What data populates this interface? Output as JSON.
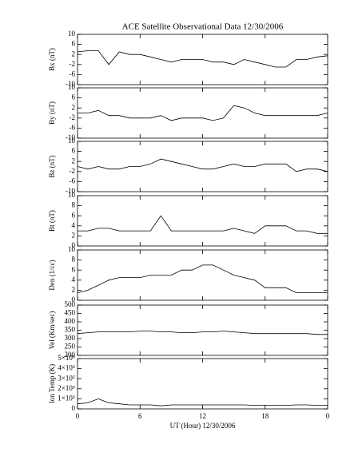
{
  "chart_data": [
    {
      "type": "line",
      "title": "ACE Satellite Observational Data   12/30/2006",
      "ylabel": "Bx (nT)",
      "x": [
        0,
        1,
        2,
        3,
        4,
        5,
        6,
        7,
        8,
        9,
        10,
        11,
        12,
        13,
        14,
        15,
        16,
        17,
        18,
        19,
        20,
        21,
        22,
        23,
        24
      ],
      "series": [
        {
          "name": "Bx",
          "color": "#000000",
          "values": [
            3,
            3.5,
            3.5,
            -2,
            3,
            2,
            2,
            1,
            0,
            -1,
            0,
            0,
            0,
            -1,
            -1,
            -2,
            0,
            -1,
            -2,
            -3,
            -3,
            0,
            0,
            1,
            1.5
          ]
        }
      ],
      "xlim": [
        0,
        24
      ],
      "xticks": [
        0,
        6,
        12,
        18,
        {
          "value": 24,
          "label": "0"
        }
      ],
      "ylim": [
        -10,
        10
      ],
      "yticks": [
        -10,
        -6,
        -2,
        2,
        6,
        10
      ]
    },
    {
      "type": "line",
      "ylabel": "By (nT)",
      "x": [
        0,
        1,
        2,
        3,
        4,
        5,
        6,
        7,
        8,
        9,
        10,
        11,
        12,
        13,
        14,
        15,
        16,
        17,
        18,
        19,
        20,
        21,
        22,
        23,
        24
      ],
      "series": [
        {
          "name": "By",
          "color": "#000000",
          "values": [
            0,
            0,
            1,
            -1,
            -1,
            -2,
            -2,
            -2,
            -1,
            -3,
            -2,
            -2,
            -2,
            -3,
            -2,
            3,
            2,
            0,
            -1,
            -1,
            -1,
            -1,
            -1,
            -1,
            0
          ]
        }
      ],
      "xlim": [
        0,
        24
      ],
      "xticks": [
        0,
        6,
        12,
        18,
        {
          "value": 24,
          "label": "0"
        }
      ],
      "ylim": [
        -10,
        10
      ],
      "yticks": [
        -10,
        -6,
        -2,
        2,
        6,
        10
      ]
    },
    {
      "type": "line",
      "ylabel": "Bz (nT)",
      "x": [
        0,
        1,
        2,
        3,
        4,
        5,
        6,
        7,
        8,
        9,
        10,
        11,
        12,
        13,
        14,
        15,
        16,
        17,
        18,
        19,
        20,
        21,
        22,
        23,
        24
      ],
      "series": [
        {
          "name": "Bz",
          "color": "#000000",
          "values": [
            0,
            -1,
            0,
            -1,
            -1,
            0,
            0,
            1,
            3,
            2,
            1,
            0,
            -1,
            -1,
            0,
            1,
            0,
            0,
            1,
            1,
            1,
            -2,
            -1,
            -1,
            -2
          ]
        }
      ],
      "xlim": [
        0,
        24
      ],
      "xticks": [
        0,
        6,
        12,
        18,
        {
          "value": 24,
          "label": "0"
        }
      ],
      "ylim": [
        -10,
        10
      ],
      "yticks": [
        -10,
        -6,
        -2,
        2,
        6,
        10
      ]
    },
    {
      "type": "line",
      "ylabel": "Bt (nT)",
      "x": [
        0,
        1,
        2,
        3,
        4,
        5,
        6,
        7,
        8,
        9,
        10,
        11,
        12,
        13,
        14,
        15,
        16,
        17,
        18,
        19,
        20,
        21,
        22,
        23,
        24
      ],
      "series": [
        {
          "name": "Bt",
          "color": "#000000",
          "values": [
            3,
            3,
            3.5,
            3.5,
            3,
            3,
            3,
            3,
            6,
            3,
            3,
            3,
            3,
            3,
            3,
            3.5,
            3,
            2.5,
            4,
            4,
            4,
            3,
            3,
            2.5,
            2.5
          ]
        }
      ],
      "xlim": [
        0,
        24
      ],
      "xticks": [
        0,
        6,
        12,
        18,
        {
          "value": 24,
          "label": "0"
        }
      ],
      "ylim": [
        0,
        10
      ],
      "yticks": [
        0,
        2,
        4,
        6,
        8,
        10
      ]
    },
    {
      "type": "line",
      "ylabel": "Den (1/cc)",
      "x": [
        0,
        1,
        2,
        3,
        4,
        5,
        6,
        7,
        8,
        9,
        10,
        11,
        12,
        13,
        14,
        15,
        16,
        17,
        18,
        19,
        20,
        21,
        22,
        23,
        24
      ],
      "series": [
        {
          "name": "Den",
          "color": "#000000",
          "values": [
            1.5,
            2,
            3,
            4,
            4.5,
            4.5,
            4.5,
            5,
            5,
            5,
            6,
            6,
            7,
            7,
            6,
            5,
            4.5,
            4,
            2.5,
            2.5,
            2.5,
            1.5,
            1.5,
            1.5,
            1.5
          ]
        }
      ],
      "xlim": [
        0,
        24
      ],
      "xticks": [
        0,
        6,
        12,
        18,
        {
          "value": 24,
          "label": "0"
        }
      ],
      "ylim": [
        0,
        10
      ],
      "yticks": [
        0,
        2,
        4,
        6,
        8,
        10
      ]
    },
    {
      "type": "line",
      "ylabel": "Vel (Km/sec)",
      "x": [
        0,
        1,
        2,
        3,
        4,
        5,
        6,
        7,
        8,
        9,
        10,
        11,
        12,
        13,
        14,
        15,
        16,
        17,
        18,
        19,
        20,
        21,
        22,
        23,
        24
      ],
      "series": [
        {
          "name": "Vel",
          "color": "#000000",
          "values": [
            330,
            335,
            340,
            340,
            340,
            340,
            345,
            345,
            340,
            340,
            335,
            335,
            340,
            340,
            345,
            340,
            335,
            330,
            330,
            330,
            330,
            330,
            330,
            325,
            325
          ]
        }
      ],
      "xlim": [
        0,
        24
      ],
      "xticks": [
        0,
        6,
        12,
        18,
        {
          "value": 24,
          "label": "0"
        }
      ],
      "ylim": [
        200,
        500
      ],
      "yticks": [
        200,
        250,
        300,
        350,
        400,
        450,
        500
      ]
    },
    {
      "type": "line",
      "ylabel": "Ion Temp (K)",
      "xlabel": "UT (Hour)  12/30/2006",
      "x": [
        0,
        1,
        2,
        3,
        4,
        5,
        6,
        7,
        8,
        9,
        10,
        11,
        12,
        13,
        14,
        15,
        16,
        17,
        18,
        19,
        20,
        21,
        22,
        23,
        24
      ],
      "series": [
        {
          "name": "Ion Temp",
          "color": "#000000",
          "values": [
            50000,
            60000,
            100000,
            60000,
            50000,
            40000,
            40000,
            40000,
            30000,
            40000,
            40000,
            40000,
            40000,
            40000,
            40000,
            40000,
            40000,
            35000,
            35000,
            35000,
            35000,
            40000,
            40000,
            35000,
            35000
          ]
        }
      ],
      "xlim": [
        0,
        24
      ],
      "xticks": [
        0,
        6,
        12,
        18,
        {
          "value": 24,
          "label": "0"
        }
      ],
      "ylim": [
        0,
        500000
      ],
      "yticks": [
        0,
        {
          "value": 100000,
          "label": "1×10⁵"
        },
        {
          "value": 200000,
          "label": "2×10⁵"
        },
        {
          "value": 300000,
          "label": "3×10⁵"
        },
        {
          "value": 400000,
          "label": "4×10⁵"
        },
        {
          "value": 500000,
          "label": "5×10⁵"
        }
      ]
    }
  ]
}
